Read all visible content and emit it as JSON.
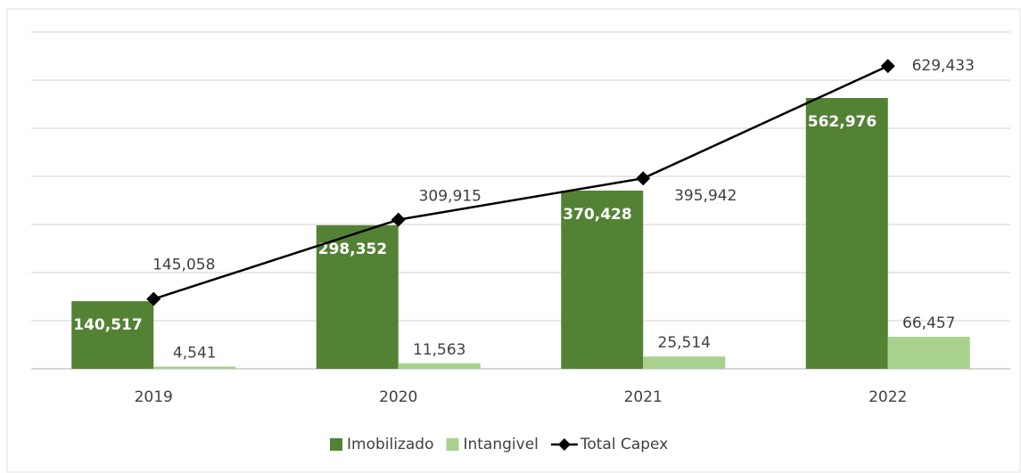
{
  "chart_data": {
    "type": "bar_line",
    "categories": [
      "2019",
      "2020",
      "2021",
      "2022"
    ],
    "series": [
      {
        "name": "Imobilizado",
        "color": "#548235",
        "kind": "bar",
        "values": [
          140517,
          298352,
          370428,
          562976
        ],
        "value_labels": [
          "140,517",
          "298,352",
          "370,428",
          "562,976"
        ]
      },
      {
        "name": "Intangivel",
        "color": "#a9d18e",
        "kind": "bar",
        "values": [
          4541,
          11563,
          25514,
          66457
        ],
        "value_labels": [
          "4,541",
          "11,563",
          "25,514",
          "66,457"
        ]
      },
      {
        "name": "Total Capex",
        "color": "#000000",
        "kind": "line",
        "values": [
          145058,
          309915,
          395942,
          629433
        ],
        "value_labels": [
          "145,058",
          "309,915",
          "395,942",
          "629,433"
        ]
      }
    ],
    "ylim": [
      0,
      700000
    ],
    "yticks": [
      0,
      100000,
      200000,
      300000,
      400000,
      500000,
      600000,
      700000
    ],
    "grid": true,
    "legend": "bottom"
  }
}
